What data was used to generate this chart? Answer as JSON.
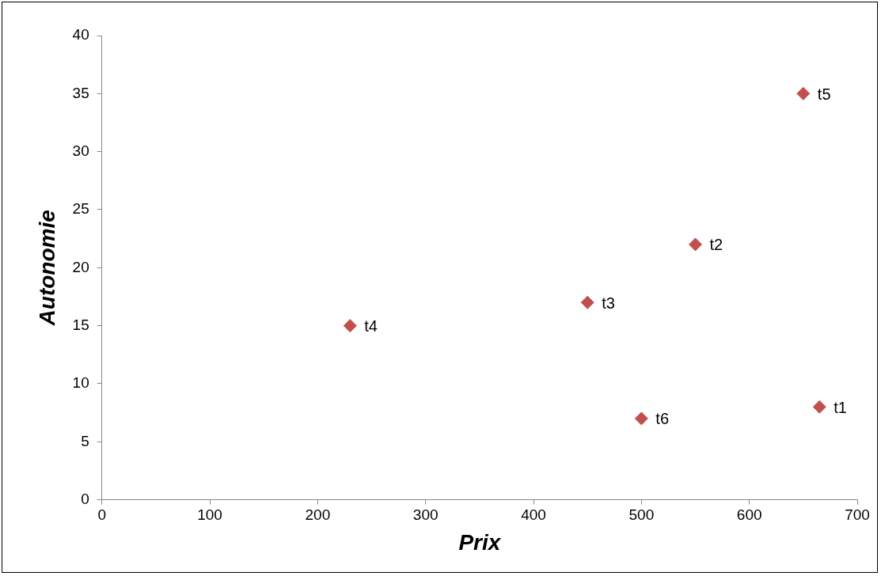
{
  "chart_data": {
    "type": "scatter",
    "xlabel": "Prix",
    "ylabel": "Autonomie",
    "x": [
      665,
      550,
      450,
      230,
      650,
      500
    ],
    "series": [
      {
        "color": "#c0504d",
        "values": [
          8,
          22,
          17,
          15,
          35,
          7
        ]
      }
    ],
    "xlim": [
      0,
      700
    ],
    "xticks": [
      0,
      100,
      200,
      300,
      400,
      500,
      600,
      700
    ],
    "ylim": [
      0,
      40
    ],
    "yticks": [
      0,
      5,
      10,
      15,
      20,
      25,
      30,
      35,
      40
    ],
    "grid": false,
    "legend": false,
    "marker": "diamond",
    "annotations": [
      {
        "text": "t1",
        "x": 665,
        "y": 8
      },
      {
        "text": "t2",
        "x": 550,
        "y": 22
      },
      {
        "text": "t3",
        "x": 450,
        "y": 17
      },
      {
        "text": "t4",
        "x": 230,
        "y": 15
      },
      {
        "text": "t5",
        "x": 650,
        "y": 35
      },
      {
        "text": "t6",
        "x": 500,
        "y": 7
      }
    ]
  }
}
